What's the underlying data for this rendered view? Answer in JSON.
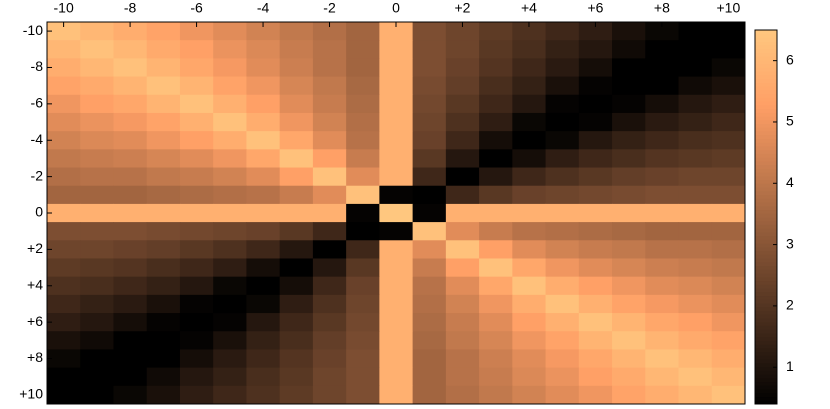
{
  "chart_data": {
    "type": "heatmap",
    "colormap": "copper",
    "x": [
      -10,
      -9,
      -8,
      -7,
      -6,
      -5,
      -4,
      -3,
      -2,
      -1,
      0,
      1,
      2,
      3,
      4,
      5,
      6,
      7,
      8,
      9,
      10
    ],
    "y": [
      -10,
      -9,
      -8,
      -7,
      -6,
      -5,
      -4,
      -3,
      -2,
      -1,
      0,
      1,
      2,
      3,
      4,
      5,
      6,
      7,
      8,
      9,
      10
    ],
    "xlim": [
      -10.5,
      10.5
    ],
    "ylim": [
      -10.5,
      10.5
    ],
    "xticks": [
      -10,
      -8,
      -6,
      -4,
      -2,
      0,
      {
        "value": 2,
        "label": "+2"
      },
      {
        "value": 4,
        "label": "+4"
      },
      {
        "value": 6,
        "label": "+6"
      },
      {
        "value": 8,
        "label": "+8"
      },
      {
        "value": 10,
        "label": "+10"
      }
    ],
    "yticks": [
      -10,
      -8,
      -6,
      -4,
      -2,
      0,
      {
        "value": 2,
        "label": "+2"
      },
      {
        "value": 4,
        "label": "+4"
      },
      {
        "value": 6,
        "label": "+6"
      },
      {
        "value": 8,
        "label": "+8"
      },
      {
        "value": 10,
        "label": "+10"
      }
    ],
    "zlim": [
      0.4,
      6.5
    ],
    "zticks": [
      1,
      2,
      3,
      4,
      5,
      6
    ],
    "z": [
      [
        6.3,
        6.0,
        5.7,
        5.4,
        5.0,
        4.7,
        4.4,
        4.1,
        3.8,
        3.5,
        5.8,
        2.8,
        2.5,
        2.2,
        1.9,
        1.6,
        1.3,
        0.9,
        0.6,
        0.3,
        0
      ],
      [
        6.0,
        6.3,
        6.0,
        5.6,
        5.3,
        4.9,
        4.6,
        4.2,
        3.9,
        3.5,
        5.8,
        2.8,
        2.5,
        2.1,
        1.8,
        1.4,
        1.1,
        0.7,
        0.4,
        0,
        0.3
      ],
      [
        5.7,
        6.0,
        6.3,
        5.9,
        5.5,
        5.1,
        4.7,
        4.3,
        3.9,
        3.5,
        5.8,
        2.8,
        2.4,
        2.0,
        1.6,
        1.2,
        0.8,
        0.4,
        0,
        0.4,
        0.6
      ],
      [
        5.4,
        5.6,
        5.9,
        6.3,
        5.9,
        5.4,
        5.0,
        4.5,
        4.1,
        3.6,
        5.8,
        2.7,
        2.3,
        1.8,
        1.4,
        0.9,
        0.5,
        0,
        0.4,
        0.7,
        0.9
      ],
      [
        5.0,
        5.3,
        5.5,
        5.9,
        6.3,
        5.8,
        5.3,
        4.7,
        4.2,
        3.7,
        5.8,
        2.6,
        2.1,
        1.6,
        1.1,
        0.5,
        0,
        0.5,
        0.8,
        1.1,
        1.3
      ],
      [
        4.7,
        4.9,
        5.1,
        5.4,
        5.8,
        6.3,
        5.7,
        5.0,
        4.4,
        3.8,
        5.8,
        2.5,
        1.9,
        1.3,
        0.6,
        0,
        0.5,
        0.9,
        1.2,
        1.4,
        1.6
      ],
      [
        4.4,
        4.6,
        4.7,
        5.0,
        5.3,
        5.7,
        6.3,
        5.5,
        4.7,
        3.9,
        5.8,
        2.4,
        1.6,
        0.8,
        0,
        0.6,
        1.1,
        1.4,
        1.6,
        1.8,
        1.9
      ],
      [
        4.1,
        4.2,
        4.3,
        4.5,
        4.7,
        5.0,
        5.5,
        6.3,
        5.3,
        4.2,
        5.8,
        2.1,
        1.1,
        0,
        0.8,
        1.3,
        1.6,
        1.8,
        2.0,
        2.1,
        2.2
      ],
      [
        3.8,
        3.9,
        3.9,
        4.1,
        4.2,
        4.4,
        4.7,
        5.3,
        6.3,
        4.7,
        5.8,
        1.6,
        0,
        1.1,
        1.6,
        1.9,
        2.1,
        2.3,
        2.4,
        2.5,
        2.5
      ],
      [
        3.5,
        3.5,
        3.5,
        3.6,
        3.7,
        3.8,
        3.9,
        4.2,
        4.7,
        6.3,
        0.5,
        0,
        1.6,
        2.1,
        2.4,
        2.5,
        2.6,
        2.7,
        2.8,
        2.8,
        2.8
      ],
      [
        5.8,
        5.8,
        5.8,
        5.8,
        5.8,
        5.8,
        5.8,
        5.8,
        5.8,
        0.5,
        6.5,
        0.5,
        5.8,
        5.8,
        5.8,
        5.8,
        5.8,
        5.8,
        5.8,
        5.8,
        5.8
      ],
      [
        2.8,
        2.8,
        2.8,
        2.7,
        2.6,
        2.5,
        2.4,
        2.1,
        1.6,
        0,
        0.5,
        6.3,
        4.7,
        4.2,
        3.9,
        3.8,
        3.7,
        3.6,
        3.5,
        3.5,
        3.5
      ],
      [
        2.5,
        2.5,
        2.4,
        2.3,
        2.1,
        1.9,
        1.6,
        1.1,
        0,
        1.6,
        5.8,
        4.7,
        6.3,
        5.3,
        4.7,
        4.4,
        4.2,
        4.1,
        3.9,
        3.9,
        3.8
      ],
      [
        2.2,
        2.1,
        2.0,
        1.8,
        1.6,
        1.3,
        0.8,
        0,
        1.1,
        2.1,
        5.8,
        4.2,
        5.3,
        6.3,
        5.5,
        5.0,
        4.7,
        4.5,
        4.3,
        4.2,
        4.1
      ],
      [
        1.9,
        1.8,
        1.6,
        1.4,
        1.1,
        0.6,
        0,
        0.8,
        1.6,
        2.4,
        5.8,
        3.9,
        4.7,
        5.5,
        6.3,
        5.7,
        5.3,
        5.0,
        4.7,
        4.6,
        4.4
      ],
      [
        1.6,
        1.4,
        1.2,
        0.9,
        0.5,
        0,
        0.6,
        1.3,
        1.9,
        2.5,
        5.8,
        3.8,
        4.4,
        5.0,
        5.7,
        6.3,
        5.8,
        5.4,
        5.1,
        4.9,
        4.7
      ],
      [
        1.3,
        1.1,
        0.8,
        0.5,
        0,
        0.5,
        1.1,
        1.6,
        2.1,
        2.6,
        5.8,
        3.7,
        4.2,
        4.7,
        5.3,
        5.8,
        6.3,
        5.9,
        5.5,
        5.3,
        5.0
      ],
      [
        0.9,
        0.7,
        0.4,
        0,
        0.5,
        0.9,
        1.4,
        1.8,
        2.3,
        2.7,
        5.8,
        3.6,
        4.1,
        4.5,
        5.0,
        5.4,
        5.9,
        6.3,
        5.9,
        5.6,
        5.4
      ],
      [
        0.6,
        0.4,
        0,
        0.4,
        0.8,
        1.2,
        1.6,
        2.0,
        2.4,
        2.8,
        5.8,
        3.5,
        3.9,
        4.3,
        4.7,
        5.1,
        5.5,
        5.9,
        6.3,
        6.0,
        5.7
      ],
      [
        0.3,
        0,
        0.4,
        0.7,
        1.1,
        1.4,
        1.8,
        2.1,
        2.5,
        2.8,
        5.8,
        3.5,
        3.9,
        4.2,
        4.6,
        4.9,
        5.3,
        5.6,
        6.0,
        6.3,
        6.0
      ],
      [
        0,
        0.3,
        0.6,
        0.9,
        1.3,
        1.6,
        1.9,
        2.2,
        2.5,
        2.8,
        5.8,
        3.5,
        3.8,
        4.1,
        4.4,
        4.7,
        5.0,
        5.4,
        5.7,
        6.0,
        6.3
      ]
    ]
  }
}
